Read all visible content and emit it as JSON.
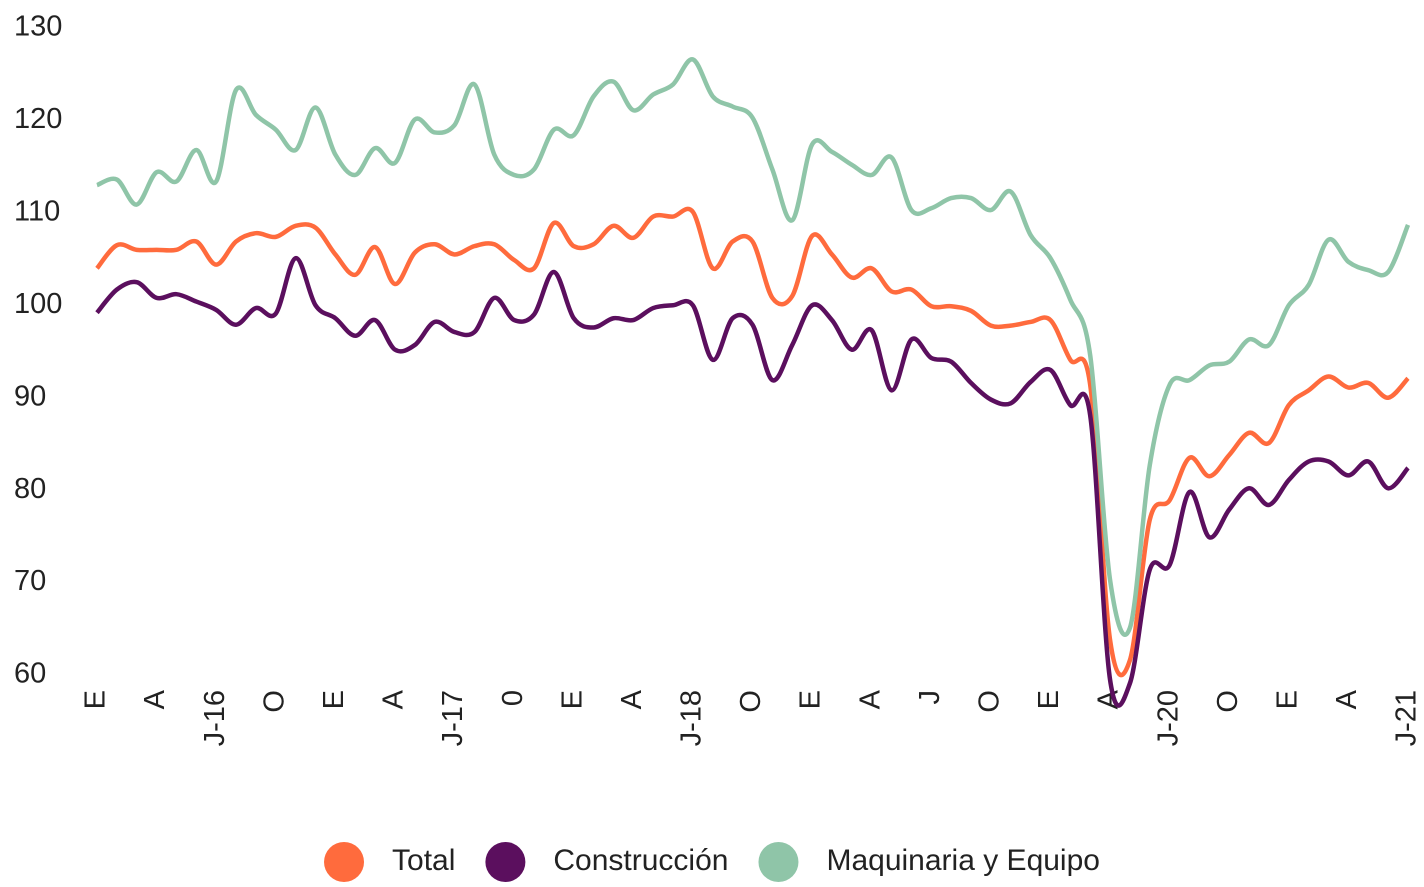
{
  "chart_data": {
    "type": "line",
    "categories": [
      "E",
      null,
      null,
      "A",
      null,
      null,
      "J-16",
      null,
      null,
      "O",
      null,
      null,
      "E",
      null,
      null,
      "A",
      null,
      null,
      "J-17",
      null,
      null,
      "0",
      null,
      null,
      "E",
      null,
      null,
      "A",
      null,
      null,
      "J-18",
      null,
      null,
      "O",
      null,
      null,
      "E",
      null,
      null,
      "A",
      null,
      null,
      "J",
      null,
      null,
      "O",
      null,
      null,
      "E",
      null,
      null,
      "A",
      null,
      null,
      "J-20",
      null,
      null,
      "O",
      null,
      null,
      "E",
      null,
      null,
      "A",
      null,
      null,
      "J-21"
    ],
    "series": [
      {
        "name": "Total",
        "color": "#ff6b3d",
        "values": [
          104.0,
          106.5,
          106.0,
          106.0,
          106.0,
          106.9,
          104.4,
          106.9,
          107.8,
          107.4,
          108.6,
          108.4,
          105.5,
          103.3,
          106.3,
          102.3,
          105.7,
          106.6,
          105.5,
          106.4,
          106.6,
          104.9,
          104.0,
          108.9,
          106.4,
          106.6,
          108.6,
          107.3,
          109.6,
          109.6,
          110.1,
          104.0,
          106.9,
          106.9,
          100.8,
          101.0,
          107.5,
          105.5,
          103.0,
          104.0,
          101.5,
          101.7,
          99.9,
          99.9,
          99.4,
          97.8,
          97.8,
          98.2,
          98.4,
          94.1,
          91.4,
          63.8,
          61.6,
          76.8,
          78.9,
          83.5,
          81.5,
          83.8,
          86.2,
          85.1,
          89.2,
          90.8,
          92.3,
          91.1,
          91.6,
          90.0,
          92.1
        ]
      },
      {
        "name": "Construcción",
        "color": "#5b0f5e",
        "values": [
          99.2,
          101.7,
          102.5,
          100.8,
          101.2,
          100.4,
          99.5,
          97.9,
          99.7,
          99.1,
          105.1,
          100.0,
          98.6,
          96.7,
          98.4,
          95.2,
          95.7,
          98.2,
          97.1,
          97.1,
          100.8,
          98.4,
          99.0,
          103.6,
          98.6,
          97.6,
          98.6,
          98.4,
          99.7,
          100.0,
          100.0,
          94.1,
          98.6,
          97.9,
          91.9,
          95.7,
          100.0,
          98.4,
          95.2,
          97.3,
          90.8,
          96.3,
          94.3,
          93.9,
          91.6,
          89.8,
          89.4,
          91.7,
          93.0,
          89.2,
          88.1,
          59.5,
          59.1,
          71.4,
          71.9,
          79.8,
          74.9,
          77.9,
          80.2,
          78.4,
          81.1,
          83.1,
          83.1,
          81.6,
          83.1,
          80.2,
          82.4
        ]
      },
      {
        "name": "Maquinaria y Equipo",
        "color": "#8fc5a8",
        "values": [
          113.0,
          113.6,
          110.9,
          114.4,
          113.4,
          116.8,
          113.4,
          123.3,
          120.6,
          119.0,
          116.8,
          121.4,
          116.3,
          114.1,
          117.0,
          115.4,
          120.1,
          118.7,
          119.5,
          123.9,
          116.3,
          114.1,
          114.7,
          119.0,
          118.4,
          122.6,
          124.2,
          121.1,
          122.8,
          123.9,
          126.6,
          122.6,
          121.5,
          120.3,
          114.7,
          109.2,
          117.4,
          116.6,
          115.2,
          114.1,
          116.0,
          110.3,
          110.5,
          111.6,
          111.6,
          110.3,
          112.3,
          107.6,
          105.1,
          100.6,
          94.6,
          70.3,
          65.1,
          82.7,
          91.4,
          91.9,
          93.5,
          93.9,
          96.3,
          95.7,
          100.0,
          102.2,
          107.1,
          104.7,
          103.8,
          103.6,
          108.7
        ]
      }
    ],
    "ylim": [
      60,
      130
    ],
    "yticks": [
      60,
      70,
      80,
      90,
      100,
      110,
      120,
      130
    ],
    "grid": false,
    "legend": "bottom"
  }
}
